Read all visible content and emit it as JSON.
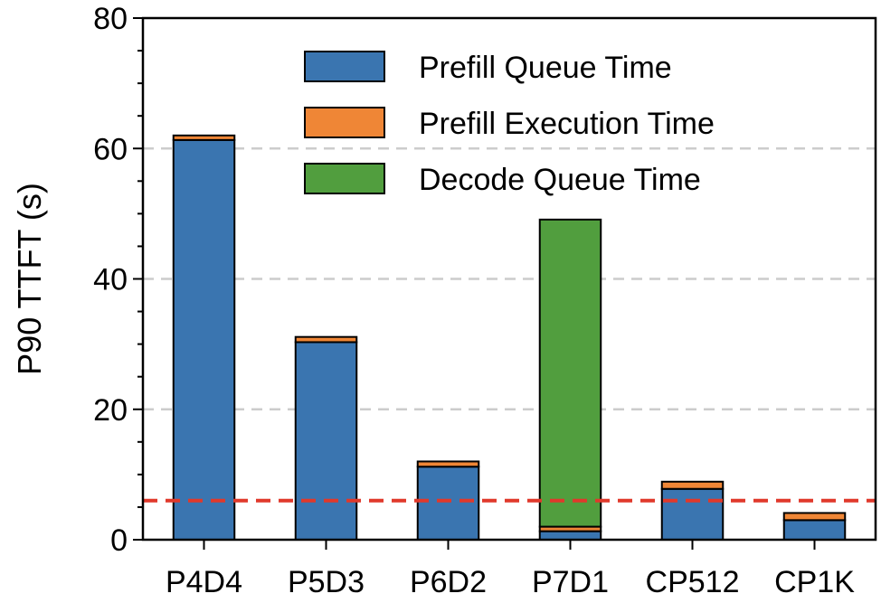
{
  "chart_data": {
    "type": "bar",
    "stacked": true,
    "categories": [
      "P4D4",
      "P5D3",
      "P6D2",
      "P7D1",
      "CP512",
      "CP1K"
    ],
    "series": [
      {
        "name": "Prefill Queue Time",
        "color": "#3a75b0",
        "values": [
          61.3,
          30.3,
          11.2,
          1.3,
          7.8,
          3.0
        ]
      },
      {
        "name": "Prefill Execution Time",
        "color": "#ef8636",
        "values": [
          0.7,
          0.8,
          0.8,
          0.7,
          1.1,
          1.1
        ]
      },
      {
        "name": "Decode Queue Time",
        "color": "#519e3e",
        "values": [
          0,
          0,
          0,
          47.1,
          0,
          0
        ]
      }
    ],
    "ylabel": "P90 TTFT (s)",
    "xlabel": "",
    "ylim": [
      0,
      80
    ],
    "yticks": [
      0,
      20,
      40,
      60,
      80
    ],
    "grid": "horizontal dashed at y ticks",
    "reference_line": {
      "value": 6,
      "color": "#e0392b",
      "style": "dashed"
    },
    "legend": {
      "position": "top-right",
      "entries": [
        "Prefill Queue Time",
        "Prefill Execution Time",
        "Decode Queue Time"
      ]
    }
  }
}
